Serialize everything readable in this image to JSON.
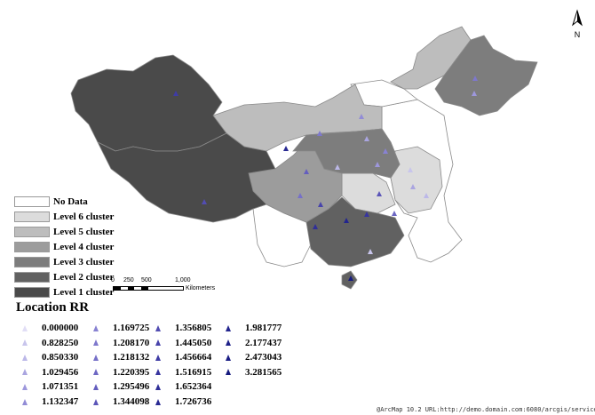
{
  "colors": {
    "no_data": "#ffffff",
    "level_6": "#dcdcdc",
    "level_5": "#bdbdbd",
    "level_4": "#9c9c9c",
    "level_3": "#7d7d7d",
    "level_2": "#616161",
    "level_1": "#4a4a4a",
    "province_border": "#8a8a8a",
    "marker_light": "#c8c5ec",
    "marker_mid": "#7a74cc",
    "marker_dark": "#1a1d8a"
  },
  "legend": {
    "items": [
      {
        "label": "No Data",
        "color": "#ffffff"
      },
      {
        "label": "Level 6 cluster",
        "color": "#dcdcdc"
      },
      {
        "label": "Level 5 cluster",
        "color": "#bdbdbd"
      },
      {
        "label": "Level 4 cluster",
        "color": "#9c9c9c"
      },
      {
        "label": "Level 3 cluster",
        "color": "#7d7d7d"
      },
      {
        "label": "Level 2 cluster",
        "color": "#616161"
      },
      {
        "label": "Level 1 cluster",
        "color": "#4a4a4a"
      }
    ]
  },
  "scalebar": {
    "ticks": [
      "0",
      "250",
      "500",
      "1,000"
    ],
    "unit": "Kilometers"
  },
  "location_rr": {
    "title": "Location RR",
    "columns": [
      [
        {
          "value": "0.000000",
          "color": "#e1def6"
        },
        {
          "value": "0.828250",
          "color": "#c8c5ec"
        },
        {
          "value": "0.850330",
          "color": "#bcb8e8"
        },
        {
          "value": "1.029456",
          "color": "#aaa5e0"
        },
        {
          "value": "1.071351",
          "color": "#9d97dc"
        },
        {
          "value": "1.132347",
          "color": "#928cd6"
        }
      ],
      [
        {
          "value": "1.169725",
          "color": "#8882d2"
        },
        {
          "value": "1.208170",
          "color": "#7e78cc"
        },
        {
          "value": "1.218132",
          "color": "#7670c8"
        },
        {
          "value": "1.220395",
          "color": "#6d67c3"
        },
        {
          "value": "1.295496",
          "color": "#645ebe"
        },
        {
          "value": "1.344098",
          "color": "#5b55b8"
        }
      ],
      [
        {
          "value": "1.356805",
          "color": "#524db2"
        },
        {
          "value": "1.445050",
          "color": "#4844ab"
        },
        {
          "value": "1.456664",
          "color": "#3f3ca5"
        },
        {
          "value": "1.516915",
          "color": "#37359f"
        },
        {
          "value": "1.652364",
          "color": "#302f98"
        },
        {
          "value": "1.726736",
          "color": "#292a93"
        }
      ],
      [
        {
          "value": "1.981777",
          "color": "#23258e"
        },
        {
          "value": "2.177437",
          "color": "#1e2189"
        },
        {
          "value": "2.473043",
          "color": "#1a1d84"
        },
        {
          "value": "3.281565",
          "color": "#151a7e"
        }
      ]
    ]
  },
  "north_arrow": {
    "label": "N",
    "icon": "north-arrow-icon"
  },
  "credit": "@ArcMap 10.2 URL:http://demo.domain.com:6080/arcgis/services"
}
